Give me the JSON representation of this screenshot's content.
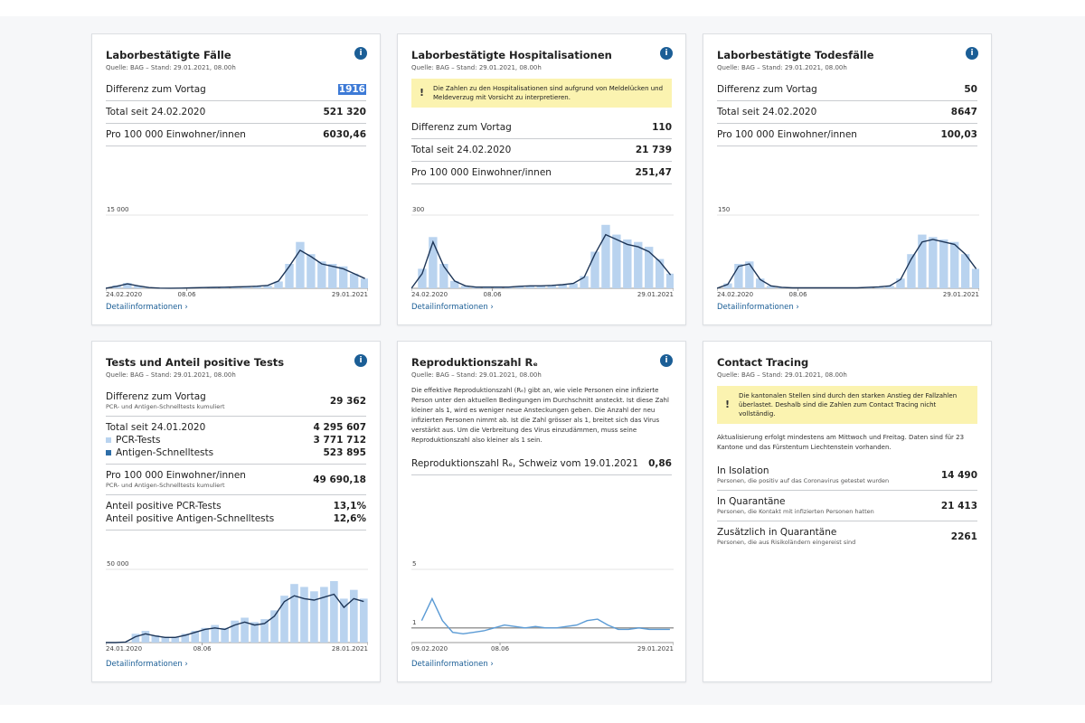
{
  "cards": [
    {
      "title": "Laborbestätigte Fälle",
      "source": "Quelle: BAG – Stand: 29.01.2021, 08.00h",
      "info": true,
      "groups": [
        {
          "items": [
            {
              "label": "Differenz zum Vortag",
              "value": "1916",
              "selected": true
            }
          ]
        },
        {
          "items": [
            {
              "label": "Total seit 24.02.2020",
              "value": "521 320"
            }
          ]
        },
        {
          "items": [
            {
              "label": "Pro 100 000 Einwohner/innen",
              "value": "6030,46"
            }
          ]
        }
      ],
      "chart": {
        "type": "bar_line",
        "x": [
          0,
          14,
          28,
          42,
          56,
          70,
          84,
          98,
          112,
          126,
          140,
          154,
          168,
          182,
          196,
          210,
          224,
          238,
          252,
          266,
          280,
          294,
          308,
          322,
          336
        ],
        "xlim": [
          0,
          340
        ],
        "ylim": [
          0,
          15000
        ],
        "yticks": [
          {
            "value": 15000,
            "label": "15 000"
          }
        ],
        "xticks": [
          {
            "value": 0,
            "label": "24.02.2020"
          },
          {
            "value": 105,
            "label": "08.06"
          },
          {
            "value": 340,
            "label": "29.01.2021"
          }
        ],
        "series": [
          {
            "type": "bar",
            "color": "#b9d3ef",
            "values": [
              0,
              600,
              1100,
              500,
              150,
              40,
              20,
              30,
              100,
              150,
              200,
              250,
              300,
              350,
              450,
              500,
              1400,
              5000,
              9500,
              7000,
              5500,
              5000,
              4500,
              3000,
              2000
            ]
          },
          {
            "type": "line",
            "color": "#1d3557",
            "values": [
              0,
              400,
              900,
              500,
              150,
              40,
              20,
              30,
              90,
              140,
              180,
              230,
              280,
              330,
              420,
              600,
              1500,
              4500,
              7800,
              6500,
              5000,
              4500,
              4000,
              3000,
              2000
            ]
          }
        ]
      },
      "link": "Detailinformationen"
    },
    {
      "title": "Laborbestätigte Hospitalisationen",
      "source": "Quelle: BAG – Stand: 29.01.2021, 08.00h",
      "info": true,
      "warning": "Die Zahlen zu den Hospitalisationen sind aufgrund von Meldelücken und Meldeverzug mit Vorsicht zu interpretieren.",
      "groups": [
        {
          "items": [
            {
              "label": "Differenz zum Vortag",
              "value": "110"
            }
          ]
        },
        {
          "items": [
            {
              "label": "Total seit 24.02.2020",
              "value": "21 739"
            }
          ]
        },
        {
          "items": [
            {
              "label": "Pro 100 000 Einwohner/innen",
              "value": "251,47"
            }
          ]
        }
      ],
      "chart": {
        "type": "bar_line",
        "x": [
          0,
          14,
          28,
          42,
          56,
          70,
          84,
          98,
          112,
          126,
          140,
          154,
          168,
          182,
          196,
          210,
          224,
          238,
          252,
          266,
          280,
          294,
          308,
          322,
          336
        ],
        "xlim": [
          0,
          340
        ],
        "ylim": [
          0,
          300
        ],
        "yticks": [
          300
        ],
        "xticks": [
          {
            "value": 0,
            "label": "24.02.2020"
          },
          {
            "value": 105,
            "label": "08.06"
          },
          {
            "value": 340,
            "label": "29.01.2021"
          }
        ],
        "series": [
          {
            "type": "bar",
            "color": "#b9d3ef",
            "values": [
              0,
              80,
              210,
              100,
              30,
              10,
              5,
              5,
              5,
              5,
              8,
              10,
              10,
              12,
              15,
              20,
              50,
              150,
              260,
              220,
              200,
              190,
              170,
              120,
              60
            ]
          },
          {
            "type": "line",
            "color": "#1d3557",
            "values": [
              0,
              60,
              190,
              90,
              30,
              10,
              5,
              5,
              5,
              5,
              8,
              10,
              10,
              12,
              15,
              20,
              45,
              140,
              220,
              200,
              180,
              170,
              150,
              110,
              55
            ]
          }
        ]
      },
      "link": "Detailinformationen"
    },
    {
      "title": "Laborbestätigte Todesfälle",
      "source": "Quelle: BAG – Stand: 29.01.2021, 08.00h",
      "info": true,
      "groups": [
        {
          "items": [
            {
              "label": "Differenz zum Vortag",
              "value": "50"
            }
          ]
        },
        {
          "items": [
            {
              "label": "Total seit 24.02.2020",
              "value": "8647"
            }
          ]
        },
        {
          "items": [
            {
              "label": "Pro 100 000 Einwohner/innen",
              "value": "100,03"
            }
          ]
        }
      ],
      "chart": {
        "type": "bar_line",
        "x": [
          0,
          14,
          28,
          42,
          56,
          70,
          84,
          98,
          112,
          126,
          140,
          154,
          168,
          182,
          196,
          210,
          224,
          238,
          252,
          266,
          280,
          294,
          308,
          322,
          336
        ],
        "xlim": [
          0,
          340
        ],
        "ylim": [
          0,
          150
        ],
        "yticks": [
          150
        ],
        "xticks": [
          {
            "value": 0,
            "label": "24.02.2020"
          },
          {
            "value": 105,
            "label": "08.06"
          },
          {
            "value": 340,
            "label": "29.01.2021"
          }
        ],
        "series": [
          {
            "type": "bar",
            "color": "#b9d3ef",
            "values": [
              0,
              10,
              50,
              55,
              20,
              5,
              2,
              1,
              1,
              1,
              1,
              1,
              1,
              1,
              2,
              3,
              5,
              20,
              70,
              110,
              105,
              100,
              95,
              70,
              40
            ]
          },
          {
            "type": "line",
            "color": "#1d3557",
            "values": [
              0,
              8,
              45,
              50,
              18,
              5,
              2,
              1,
              1,
              1,
              1,
              1,
              1,
              1,
              2,
              3,
              5,
              18,
              60,
              95,
              100,
              95,
              90,
              70,
              40
            ]
          }
        ]
      },
      "link": "Detailinformationen"
    },
    {
      "title": "Tests und Anteil positive Tests",
      "source": "Quelle: BAG – Stand: 29.01.2021, 08.00h",
      "info": true,
      "groups": [
        {
          "items": [
            {
              "label": "Differenz zum Vortag",
              "sub": "PCR- und Antigen-Schnelltests kumuliert",
              "value": "29 362"
            }
          ]
        },
        {
          "items": [
            {
              "label": "Total seit 24.01.2020",
              "value": "4 295 607"
            },
            {
              "label": "PCR-Tests",
              "value": "3 771 712",
              "color": "#b9d3ef"
            },
            {
              "label": "Antigen-Schnelltests",
              "value": "523 895",
              "color": "#2e6ea8"
            }
          ]
        },
        {
          "items": [
            {
              "label": "Pro 100 000 Einwohner/innen",
              "sub": "PCR- und Antigen-Schnelltests kumuliert",
              "value": "49 690,18"
            }
          ]
        },
        {
          "items": [
            {
              "label": "Anteil positive PCR-Tests",
              "value": "13,1%"
            },
            {
              "label": "Anteil positive Antigen-Schnelltests",
              "value": "12,6%"
            }
          ]
        }
      ],
      "chart": {
        "type": "bar_line",
        "x": [
          0,
          14,
          28,
          42,
          56,
          70,
          84,
          98,
          112,
          126,
          140,
          154,
          168,
          182,
          196,
          210,
          224,
          238,
          252,
          266,
          280,
          294,
          308,
          322,
          336,
          350,
          364
        ],
        "xlim": [
          0,
          370
        ],
        "ylim": [
          0,
          50000
        ],
        "yticks": [
          {
            "value": 50000,
            "label": "50 000"
          }
        ],
        "xticks": [
          {
            "value": 0,
            "label": "24.01.2020"
          },
          {
            "value": 136,
            "label": "08.06"
          },
          {
            "value": 370,
            "label": "28.01.2021"
          }
        ],
        "series": [
          {
            "type": "bar",
            "color": "#b9d3ef",
            "values": [
              0,
              0,
              500,
              6000,
              8000,
              5000,
              4000,
              4000,
              6000,
              8000,
              10000,
              12000,
              10000,
              15000,
              17000,
              14000,
              16000,
              22000,
              32000,
              40000,
              38000,
              35000,
              38000,
              42000,
              30000,
              36000,
              30000
            ]
          },
          {
            "type": "line",
            "color": "#1d3557",
            "values": [
              0,
              0,
              400,
              4000,
              6000,
              4500,
              3500,
              3500,
              5000,
              7000,
              9000,
              10000,
              9000,
              12000,
              14000,
              12000,
              13000,
              18000,
              28000,
              32000,
              30000,
              29000,
              31000,
              33000,
              24000,
              30000,
              28000
            ]
          }
        ]
      },
      "link": "Detailinformationen"
    },
    {
      "title": "Reproduktionszahl Rₑ",
      "source": "Quelle: BAG – Stand: 29.01.2021, 08.00h",
      "info": true,
      "text": "Die effektive Reproduktionszahl (Rₑ) gibt an, wie viele Personen eine infizierte Person unter den aktuellen Bedingungen im Durchschnitt ansteckt. Ist diese Zahl kleiner als 1, wird es weniger neue Ansteckungen geben. Die Anzahl der neu infizierten Personen nimmt ab. Ist die Zahl grösser als 1, breitet sich das Virus verstärkt aus. Um die Verbreitung des Virus einzudämmen, muss seine Reproduktionszahl also kleiner als 1 sein.",
      "groups": [
        {
          "items": [
            {
              "label": "Reproduktionszahl Rₑ, Schweiz vom 19.01.2021",
              "value": "0,86"
            }
          ]
        }
      ],
      "chart": {
        "type": "line",
        "x": [
          14,
          28,
          42,
          56,
          70,
          84,
          98,
          112,
          126,
          140,
          154,
          168,
          182,
          196,
          210,
          224,
          238,
          252,
          266,
          280,
          294,
          308,
          322,
          336,
          350
        ],
        "xlim": [
          0,
          355
        ],
        "ylim": [
          0,
          5
        ],
        "yticks": [
          5,
          1
        ],
        "tick_line_colors": [
          "#e4e4e4",
          "#9a9a9a"
        ],
        "xticks": [
          {
            "value": 0,
            "label": "09.02.2020"
          },
          {
            "value": 120,
            "label": "08.06"
          },
          {
            "value": 355,
            "label": "29.01.2021"
          }
        ],
        "series": [
          {
            "type": "line",
            "color": "#5b9bd5",
            "values": [
              1.5,
              3.0,
              1.5,
              0.7,
              0.6,
              0.7,
              0.8,
              1.0,
              1.2,
              1.1,
              1.0,
              1.1,
              1.0,
              1.0,
              1.1,
              1.2,
              1.5,
              1.6,
              1.2,
              0.9,
              0.9,
              1.0,
              0.9,
              0.9,
              0.9
            ]
          }
        ]
      },
      "link": "Detailinformationen"
    },
    {
      "title": "Contact Tracing",
      "source": "Quelle: BAG – Stand: 29.01.2021, 08.00h",
      "info": false,
      "warning": "Die kantonalen Stellen sind durch den starken Anstieg der Fallzahlen überlastet. Deshalb sind die Zahlen zum Contact Tracing nicht vollständig.",
      "text": "Aktualisierung erfolgt mindestens am Mittwoch und Freitag. Daten sind für 23 Kantone und das Fürstentum Liechtenstein vorhanden.",
      "groups": [
        {
          "items": [
            {
              "label": "In Isolation",
              "sub": "Personen, die positiv auf das Coronavirus getestet wurden",
              "value": "14 490"
            }
          ]
        },
        {
          "items": [
            {
              "label": "In Quarantäne",
              "sub": "Personen, die Kontakt mit infizierten Personen hatten",
              "value": "21 413"
            }
          ]
        },
        {
          "items": [
            {
              "label": "Zusätzlich in Quarantäne",
              "sub": "Personen, die aus Risikoländern eingereist sind",
              "value": "2261"
            }
          ]
        }
      ]
    }
  ]
}
